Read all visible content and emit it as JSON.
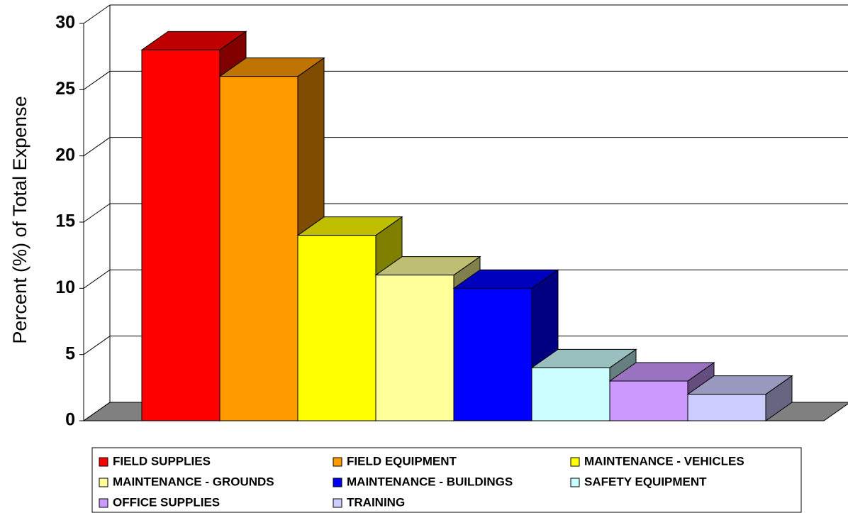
{
  "chart_data": {
    "type": "bar3d",
    "y_label": "Percent (%) of Total Expense",
    "categories": [
      "FIELD SUPPLIES",
      "FIELD EQUIPMENT",
      "MAINTENANCE - VEHICLES",
      "MAINTENANCE - GROUNDS",
      "MAINTENANCE - BUILDINGS",
      "SAFETY EQUIPMENT",
      "OFFICE SUPPLIES",
      "TRAINING"
    ],
    "values": [
      28,
      26,
      14,
      11,
      10,
      4,
      3,
      2
    ],
    "colors": [
      "#ff0000",
      "#ff9900",
      "#ffff00",
      "#ffff99",
      "#0000ff",
      "#ccffff",
      "#cc99ff",
      "#ccccff"
    ],
    "ylim": [
      0,
      30
    ],
    "yticks": [
      0,
      5,
      10,
      15,
      20,
      25,
      30
    ],
    "grid": true,
    "legend": "bottom"
  }
}
